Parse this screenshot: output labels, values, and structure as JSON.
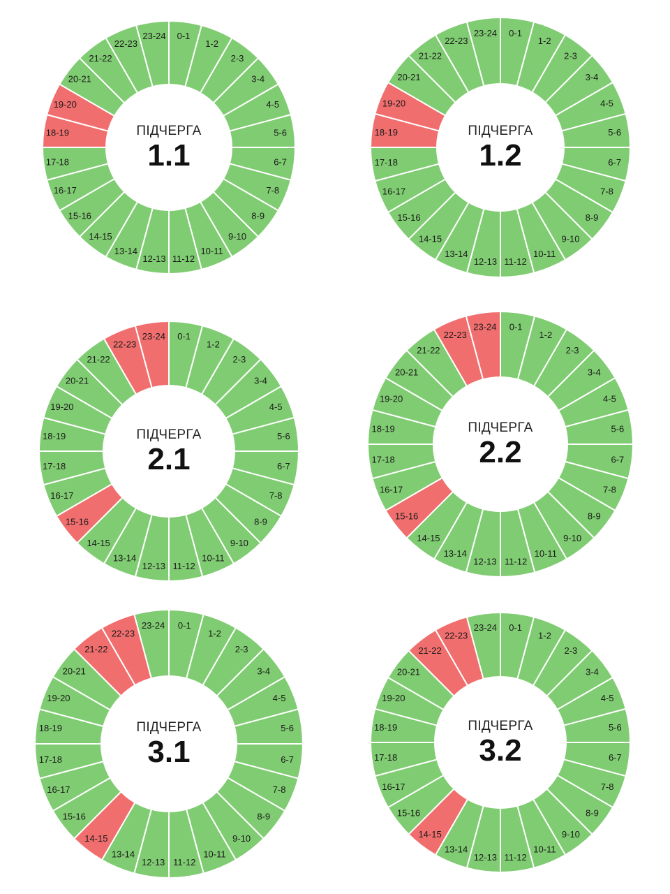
{
  "chart_data": {
    "type": "donut",
    "segment_count": 24,
    "colors": {
      "on": "#80CC72",
      "off": "#F16E6E",
      "divider": "#ffffff",
      "center": "#ffffff"
    },
    "hour_labels": [
      "0-1",
      "1-2",
      "2-3",
      "3-4",
      "4-5",
      "5-6",
      "6-7",
      "7-8",
      "8-9",
      "9-10",
      "10-11",
      "11-12",
      "12-13",
      "13-14",
      "14-15",
      "15-16",
      "16-17",
      "17-18",
      "18-19",
      "19-20",
      "20-21",
      "21-22",
      "22-23",
      "23-24"
    ],
    "charts": [
      {
        "center_label": "ПІДЧЕРГА",
        "queue": "1.1",
        "off_hours": [
          "18-19",
          "19-20"
        ]
      },
      {
        "center_label": "ПІДЧЕРГА",
        "queue": "1.2",
        "off_hours": [
          "18-19",
          "19-20"
        ]
      },
      {
        "center_label": "ПІДЧЕРГА",
        "queue": "2.1",
        "off_hours": [
          "15-16",
          "22-23",
          "23-24"
        ]
      },
      {
        "center_label": "ПІДЧЕРГА",
        "queue": "2.2",
        "off_hours": [
          "15-16",
          "22-23",
          "23-24"
        ]
      },
      {
        "center_label": "ПІДЧЕРГА",
        "queue": "3.1",
        "off_hours": [
          "14-15",
          "21-22",
          "22-23"
        ]
      },
      {
        "center_label": "ПІДЧЕРГА",
        "queue": "3.2",
        "off_hours": [
          "14-15",
          "21-22",
          "22-23"
        ]
      }
    ]
  }
}
